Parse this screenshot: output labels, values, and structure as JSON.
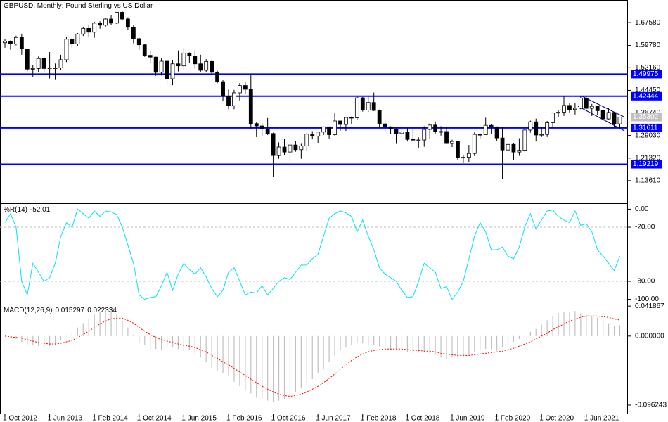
{
  "chart_data": [
    {
      "type": "candlestick",
      "title": "GBPUSD, Monthly:  Pound Sterling vs US Dollar",
      "up_color": "#ffffff",
      "down_color": "#000000",
      "ylim": [
        1.059,
        1.7529
      ],
      "yticks": [
        {
          "value": 1.6758,
          "label": "1.67580"
        },
        {
          "value": 1.5978,
          "label": "1.59780"
        },
        {
          "value": 1.5216,
          "label": "1.52160"
        },
        {
          "value": 1.4445,
          "label": "1.44450"
        },
        {
          "value": 1.3674,
          "label": "1.36740"
        },
        {
          "value": 1.2903,
          "label": "1.29030"
        },
        {
          "value": 1.2132,
          "label": "1.21320"
        },
        {
          "value": 1.1361,
          "label": "1.13610"
        }
      ],
      "hlines": [
        1.49975,
        1.42444,
        1.31611,
        1.19219
      ],
      "hline_color": "#0000ff",
      "last_price": 1.35302,
      "last_price_color": "#c0c0c0",
      "ohlc": [
        [
          1.607,
          1.62,
          1.59,
          1.612
        ],
        [
          1.612,
          1.615,
          1.583,
          1.603
        ],
        [
          1.603,
          1.631,
          1.598,
          1.625
        ],
        [
          1.625,
          1.638,
          1.566,
          1.586
        ],
        [
          1.586,
          1.587,
          1.509,
          1.517
        ],
        [
          1.517,
          1.53,
          1.489,
          1.519
        ],
        [
          1.519,
          1.56,
          1.508,
          1.553
        ],
        [
          1.553,
          1.559,
          1.505,
          1.519
        ],
        [
          1.519,
          1.575,
          1.485,
          1.521
        ],
        [
          1.521,
          1.536,
          1.48,
          1.521
        ],
        [
          1.521,
          1.566,
          1.515,
          1.549
        ],
        [
          1.549,
          1.626,
          1.541,
          1.619
        ],
        [
          1.619,
          1.625,
          1.59,
          1.603
        ],
        [
          1.603,
          1.64,
          1.595,
          1.637
        ],
        [
          1.637,
          1.66,
          1.63,
          1.656
        ],
        [
          1.656,
          1.668,
          1.627,
          1.643
        ],
        [
          1.643,
          1.679,
          1.624,
          1.674
        ],
        [
          1.674,
          1.68,
          1.655,
          1.667
        ],
        [
          1.667,
          1.693,
          1.66,
          1.688
        ],
        [
          1.688,
          1.7,
          1.668,
          1.674
        ],
        [
          1.674,
          1.712,
          1.671,
          1.711
        ],
        [
          1.711,
          1.717,
          1.683,
          1.688
        ],
        [
          1.688,
          1.694,
          1.652,
          1.66
        ],
        [
          1.66,
          1.666,
          1.605,
          1.621
        ],
        [
          1.621,
          1.624,
          1.583,
          1.6
        ],
        [
          1.6,
          1.604,
          1.559,
          1.564
        ],
        [
          1.564,
          1.579,
          1.538,
          1.558
        ],
        [
          1.558,
          1.559,
          1.494,
          1.506
        ],
        [
          1.506,
          1.555,
          1.495,
          1.544
        ],
        [
          1.544,
          1.545,
          1.461,
          1.484
        ],
        [
          1.484,
          1.547,
          1.462,
          1.535
        ],
        [
          1.535,
          1.581,
          1.509,
          1.528
        ],
        [
          1.528,
          1.59,
          1.517,
          1.572
        ],
        [
          1.572,
          1.574,
          1.538,
          1.562
        ],
        [
          1.562,
          1.582,
          1.519,
          1.535
        ],
        [
          1.535,
          1.566,
          1.507,
          1.513
        ],
        [
          1.513,
          1.551,
          1.506,
          1.543
        ],
        [
          1.543,
          1.547,
          1.5,
          1.506
        ],
        [
          1.506,
          1.511,
          1.469,
          1.474
        ],
        [
          1.474,
          1.479,
          1.407,
          1.425
        ],
        [
          1.425,
          1.447,
          1.38,
          1.392
        ],
        [
          1.392,
          1.446,
          1.38,
          1.436
        ],
        [
          1.436,
          1.469,
          1.41,
          1.461
        ],
        [
          1.461,
          1.474,
          1.433,
          1.448
        ],
        [
          1.448,
          1.502,
          1.313,
          1.331
        ],
        [
          1.331,
          1.335,
          1.285,
          1.323
        ],
        [
          1.323,
          1.333,
          1.287,
          1.313
        ],
        [
          1.313,
          1.35,
          1.292,
          1.297
        ],
        [
          1.297,
          1.3,
          1.149,
          1.222
        ],
        [
          1.222,
          1.267,
          1.211,
          1.251
        ],
        [
          1.251,
          1.278,
          1.223,
          1.234
        ],
        [
          1.234,
          1.27,
          1.198,
          1.258
        ],
        [
          1.258,
          1.271,
          1.235,
          1.242
        ],
        [
          1.242,
          1.262,
          1.211,
          1.255
        ],
        [
          1.255,
          1.299,
          1.237,
          1.295
        ],
        [
          1.295,
          1.305,
          1.277,
          1.288
        ],
        [
          1.288,
          1.302,
          1.265,
          1.302
        ],
        [
          1.302,
          1.32,
          1.292,
          1.32
        ],
        [
          1.32,
          1.321,
          1.28,
          1.293
        ],
        [
          1.293,
          1.366,
          1.29,
          1.34
        ],
        [
          1.34,
          1.341,
          1.307,
          1.328
        ],
        [
          1.328,
          1.352,
          1.306,
          1.352
        ],
        [
          1.352,
          1.355,
          1.33,
          1.351
        ],
        [
          1.351,
          1.425,
          1.345,
          1.419
        ],
        [
          1.419,
          1.422,
          1.372,
          1.377
        ],
        [
          1.377,
          1.424,
          1.371,
          1.403
        ],
        [
          1.403,
          1.437,
          1.374,
          1.376
        ],
        [
          1.376,
          1.379,
          1.32,
          1.33
        ],
        [
          1.33,
          1.344,
          1.304,
          1.32
        ],
        [
          1.32,
          1.322,
          1.295,
          1.312
        ],
        [
          1.312,
          1.314,
          1.262,
          1.297
        ],
        [
          1.297,
          1.33,
          1.288,
          1.303
        ],
        [
          1.303,
          1.315,
          1.27,
          1.277
        ],
        [
          1.277,
          1.313,
          1.272,
          1.275
        ],
        [
          1.275,
          1.284,
          1.249,
          1.275
        ],
        [
          1.275,
          1.322,
          1.252,
          1.311
        ],
        [
          1.311,
          1.331,
          1.28,
          1.326
        ],
        [
          1.326,
          1.338,
          1.297,
          1.303
        ],
        [
          1.303,
          1.322,
          1.29,
          1.304
        ],
        [
          1.304,
          1.318,
          1.261,
          1.263
        ],
        [
          1.263,
          1.276,
          1.251,
          1.27
        ],
        [
          1.27,
          1.272,
          1.208,
          1.216
        ],
        [
          1.216,
          1.225,
          1.196,
          1.216
        ],
        [
          1.216,
          1.258,
          1.2,
          1.229
        ],
        [
          1.229,
          1.301,
          1.22,
          1.294
        ],
        [
          1.294,
          1.297,
          1.281,
          1.293
        ],
        [
          1.293,
          1.351,
          1.292,
          1.325
        ],
        [
          1.325,
          1.329,
          1.296,
          1.32
        ],
        [
          1.32,
          1.321,
          1.273,
          1.282
        ],
        [
          1.282,
          1.32,
          1.141,
          1.241
        ],
        [
          1.241,
          1.267,
          1.226,
          1.26
        ],
        [
          1.26,
          1.265,
          1.207,
          1.234
        ],
        [
          1.234,
          1.281,
          1.221,
          1.24
        ],
        [
          1.24,
          1.315,
          1.235,
          1.309
        ],
        [
          1.309,
          1.341,
          1.3,
          1.337
        ],
        [
          1.337,
          1.348,
          1.27,
          1.292
        ],
        [
          1.292,
          1.318,
          1.285,
          1.294
        ],
        [
          1.294,
          1.34,
          1.285,
          1.334
        ],
        [
          1.334,
          1.369,
          1.317,
          1.367
        ],
        [
          1.367,
          1.376,
          1.353,
          1.37
        ],
        [
          1.37,
          1.424,
          1.357,
          1.393
        ],
        [
          1.393,
          1.401,
          1.367,
          1.379
        ],
        [
          1.379,
          1.4,
          1.362,
          1.383
        ],
        [
          1.383,
          1.424,
          1.38,
          1.418
        ],
        [
          1.418,
          1.425,
          1.38,
          1.383
        ],
        [
          1.383,
          1.398,
          1.357,
          1.39
        ],
        [
          1.39,
          1.393,
          1.36,
          1.375
        ],
        [
          1.375,
          1.38,
          1.34,
          1.347
        ],
        [
          1.347,
          1.383,
          1.345,
          1.369
        ],
        [
          1.369,
          1.37,
          1.319,
          1.33
        ],
        [
          1.33,
          1.354,
          1.316,
          1.353
        ]
      ]
    },
    {
      "type": "line",
      "title": "%R(14)",
      "color": "#00e5ee",
      "ylim": [
        -105,
        5
      ],
      "yticks": [
        {
          "value": 0,
          "label": "0.00"
        },
        {
          "value": -20,
          "label": "-20.00"
        },
        {
          "value": -80,
          "label": "-80.00"
        },
        {
          "value": -100,
          "label": "-100.00"
        }
      ],
      "values": [
        -15,
        -5,
        -20,
        -80,
        -95,
        -60,
        -70,
        -80,
        -76,
        -60,
        -30,
        -15,
        -20,
        0,
        -5,
        -10,
        -2,
        -8,
        -2,
        -3,
        -6,
        -20,
        -40,
        -60,
        -95,
        -100,
        -98,
        -97,
        -85,
        -70,
        -90,
        -72,
        -60,
        -67,
        -72,
        -65,
        -75,
        -88,
        -97,
        -90,
        -70,
        -65,
        -80,
        -95,
        -92,
        -93,
        -85,
        -95,
        -88,
        -80,
        -76,
        -78,
        -70,
        -62,
        -62,
        -55,
        -50,
        -30,
        -10,
        -5,
        -2,
        -4,
        -8,
        -25,
        -12,
        -30,
        -45,
        -65,
        -72,
        -76,
        -80,
        -90,
        -98,
        -97,
        -80,
        -60,
        -65,
        -70,
        -88,
        -86,
        -100,
        -92,
        -80,
        -55,
        -30,
        -15,
        -25,
        -45,
        -45,
        -42,
        -52,
        -55,
        -42,
        -20,
        -5,
        -22,
        -12,
        -2,
        -1,
        -8,
        -12,
        -15,
        -2,
        -18,
        -16,
        -25,
        -45,
        -52,
        -60,
        -68,
        -52.01
      ]
    },
    {
      "type": "bar",
      "title": "MACD(12,26,9)",
      "ylim": [
        -0.11,
        0.043
      ],
      "yticks": [
        0.041867,
        {
          "value": 0,
          "label": "0.000000"
        },
        -0.096243
      ],
      "categories": [
        "1 Oct 2012",
        null,
        null,
        null,
        null,
        null,
        null,
        null,
        "1 Jun 2013",
        null,
        null,
        null,
        null,
        null,
        null,
        null,
        "1 Feb 2014",
        null,
        null,
        null,
        null,
        null,
        null,
        null,
        "1 Oct 2014",
        null,
        null,
        null,
        null,
        null,
        null,
        null,
        "1 Jun 2015",
        null,
        null,
        null,
        null,
        null,
        null,
        null,
        "1 Feb 2016",
        null,
        null,
        null,
        null,
        null,
        null,
        null,
        "1 Oct 2016",
        null,
        null,
        null,
        null,
        null,
        null,
        null,
        "1 Jun 2017",
        null,
        null,
        null,
        null,
        null,
        null,
        null,
        "1 Feb 2018",
        null,
        null,
        null,
        null,
        null,
        null,
        null,
        "1 Oct 2018",
        null,
        null,
        null,
        null,
        null,
        null,
        null,
        "1 Jun 2019",
        null,
        null,
        null,
        null,
        null,
        null,
        null,
        "1 Feb 2020",
        null,
        null,
        null,
        null,
        null,
        null,
        null,
        "1 Oct 2020",
        null,
        null,
        null,
        null,
        null,
        null,
        null,
        "1 Jun 2021",
        null,
        null,
        null,
        null,
        null,
        null
      ],
      "series": [
        {
          "color": "#c0c0c0",
          "values": [
            0.0,
            -0.002,
            -0.004,
            -0.008,
            -0.012,
            -0.013,
            -0.014,
            -0.015,
            -0.014,
            -0.012,
            -0.006,
            0.0,
            0.005,
            0.012,
            0.018,
            0.024,
            0.03,
            0.034,
            0.036,
            0.035,
            0.03,
            0.022,
            0.012,
            0.002,
            -0.01,
            -0.012,
            -0.018,
            -0.018,
            -0.02,
            -0.016,
            -0.016,
            -0.018,
            -0.02,
            -0.02,
            -0.024,
            -0.03,
            -0.036,
            -0.044,
            -0.048,
            -0.052,
            -0.056,
            -0.064,
            -0.07,
            -0.076,
            -0.08,
            -0.086,
            -0.088,
            -0.09,
            -0.092,
            -0.09,
            -0.088,
            -0.082,
            -0.078,
            -0.072,
            -0.066,
            -0.06,
            -0.052,
            -0.046,
            -0.036,
            -0.028,
            -0.02,
            -0.016,
            -0.012,
            -0.01,
            -0.01,
            -0.012,
            -0.012,
            -0.014,
            -0.016,
            -0.018,
            -0.018,
            -0.02,
            -0.022,
            -0.024,
            -0.022,
            -0.022,
            -0.024,
            -0.026,
            -0.03,
            -0.032,
            -0.03,
            -0.03,
            -0.028,
            -0.026,
            -0.022,
            -0.02,
            -0.018,
            -0.018,
            -0.02,
            -0.016,
            -0.012,
            -0.008,
            -0.004,
            0.0,
            0.006,
            0.01,
            0.016,
            0.022,
            0.028,
            0.032,
            0.034,
            0.034,
            0.035,
            0.032,
            0.03,
            0.028,
            0.026,
            0.022,
            0.018,
            0.014,
            0.015297
          ]
        },
        {
          "color": "#ff0000",
          "values": [
            0.0,
            -0.001,
            -0.002,
            -0.003,
            -0.005,
            -0.007,
            -0.009,
            -0.01,
            -0.011,
            -0.011,
            -0.01,
            -0.008,
            -0.006,
            -0.002,
            0.002,
            0.007,
            0.012,
            0.017,
            0.021,
            0.024,
            0.025,
            0.025,
            0.022,
            0.018,
            0.012,
            0.007,
            0.002,
            -0.002,
            -0.005,
            -0.007,
            -0.009,
            -0.011,
            -0.013,
            -0.014,
            -0.016,
            -0.019,
            -0.022,
            -0.027,
            -0.031,
            -0.036,
            -0.04,
            -0.045,
            -0.05,
            -0.055,
            -0.06,
            -0.065,
            -0.07,
            -0.074,
            -0.078,
            -0.081,
            -0.083,
            -0.084,
            -0.083,
            -0.081,
            -0.078,
            -0.074,
            -0.07,
            -0.065,
            -0.059,
            -0.053,
            -0.046,
            -0.04,
            -0.034,
            -0.029,
            -0.025,
            -0.022,
            -0.02,
            -0.019,
            -0.018,
            -0.018,
            -0.018,
            -0.018,
            -0.019,
            -0.02,
            -0.02,
            -0.021,
            -0.021,
            -0.022,
            -0.024,
            -0.025,
            -0.026,
            -0.027,
            -0.027,
            -0.027,
            -0.026,
            -0.025,
            -0.024,
            -0.023,
            -0.022,
            -0.021,
            -0.019,
            -0.017,
            -0.014,
            -0.011,
            -0.008,
            -0.004,
            0.0,
            0.004,
            0.009,
            0.013,
            0.017,
            0.021,
            0.024,
            0.026,
            0.028,
            0.028,
            0.028,
            0.027,
            0.026,
            0.024,
            0.022334
          ]
        }
      ]
    }
  ]
}
